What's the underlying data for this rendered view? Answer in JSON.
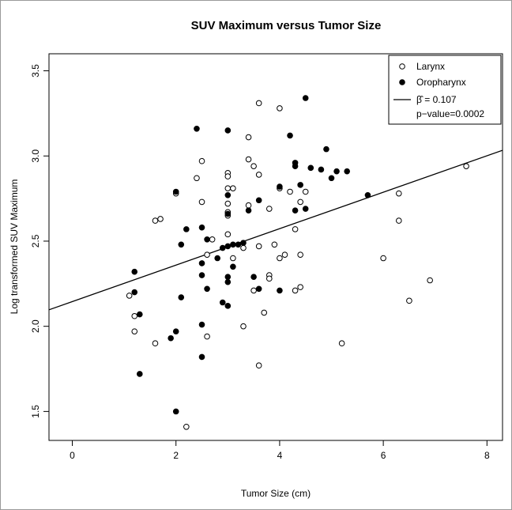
{
  "chart_data": {
    "type": "scatter",
    "title": "SUV Maximum versus Tumor Size",
    "xlabel": "Tumor Size (cm)",
    "ylabel": "Log transformed SUV Maximum",
    "xlim": [
      -0.45,
      8.3
    ],
    "ylim": [
      1.33,
      3.6
    ],
    "x_ticks": [
      0,
      2,
      4,
      6,
      8
    ],
    "y_ticks": [
      1.5,
      2.0,
      2.5,
      3.0,
      3.5
    ],
    "x_tick_labels": [
      "0",
      "2",
      "4",
      "6",
      "8"
    ],
    "y_tick_labels": [
      "1.5",
      "2.0",
      "2.5",
      "3.0",
      "3.5"
    ],
    "grid": false,
    "legend": {
      "position": "top-right",
      "entries": [
        "Larynx",
        "Oropharynx"
      ],
      "beta_label": "β̂ = 0.107",
      "pvalue_label": "p−value=0.0002"
    },
    "regression_line": {
      "slope": 0.107,
      "intercept": 2.145
    },
    "series": [
      {
        "name": "Larynx",
        "marker": "open-circle",
        "points": [
          [
            1.1,
            2.18
          ],
          [
            1.2,
            2.06
          ],
          [
            1.2,
            1.97
          ],
          [
            1.6,
            2.62
          ],
          [
            1.7,
            2.63
          ],
          [
            1.6,
            1.9
          ],
          [
            2.0,
            2.78
          ],
          [
            2.2,
            1.41
          ],
          [
            2.4,
            2.87
          ],
          [
            2.5,
            2.97
          ],
          [
            2.5,
            2.73
          ],
          [
            2.6,
            2.42
          ],
          [
            2.7,
            2.51
          ],
          [
            2.6,
            1.94
          ],
          [
            3.0,
            2.9
          ],
          [
            3.0,
            2.88
          ],
          [
            3.0,
            2.81
          ],
          [
            3.0,
            2.72
          ],
          [
            3.0,
            2.67
          ],
          [
            3.0,
            2.65
          ],
          [
            3.0,
            2.54
          ],
          [
            3.1,
            2.81
          ],
          [
            3.1,
            2.4
          ],
          [
            3.3,
            2.46
          ],
          [
            3.3,
            2.0
          ],
          [
            3.4,
            3.11
          ],
          [
            3.4,
            2.98
          ],
          [
            3.4,
            2.71
          ],
          [
            3.5,
            2.94
          ],
          [
            3.5,
            2.21
          ],
          [
            3.6,
            3.31
          ],
          [
            3.6,
            2.89
          ],
          [
            3.6,
            2.47
          ],
          [
            3.6,
            1.77
          ],
          [
            3.7,
            2.08
          ],
          [
            3.8,
            2.69
          ],
          [
            3.8,
            2.3
          ],
          [
            3.8,
            2.28
          ],
          [
            3.9,
            2.48
          ],
          [
            4.0,
            3.28
          ],
          [
            4.0,
            2.81
          ],
          [
            4.0,
            2.4
          ],
          [
            4.1,
            2.42
          ],
          [
            4.2,
            2.79
          ],
          [
            4.3,
            2.57
          ],
          [
            4.3,
            2.21
          ],
          [
            4.4,
            2.73
          ],
          [
            4.4,
            2.42
          ],
          [
            4.4,
            2.23
          ],
          [
            4.5,
            2.79
          ],
          [
            5.2,
            1.9
          ],
          [
            6.0,
            2.4
          ],
          [
            6.3,
            2.78
          ],
          [
            6.3,
            2.62
          ],
          [
            6.5,
            2.15
          ],
          [
            6.9,
            2.27
          ],
          [
            7.6,
            2.94
          ]
        ]
      },
      {
        "name": "Oropharynx",
        "marker": "filled-circle",
        "points": [
          [
            1.2,
            2.32
          ],
          [
            1.2,
            2.2
          ],
          [
            1.3,
            2.07
          ],
          [
            1.3,
            1.72
          ],
          [
            1.9,
            1.93
          ],
          [
            2.0,
            2.79
          ],
          [
            2.0,
            1.97
          ],
          [
            2.0,
            1.5
          ],
          [
            2.1,
            2.48
          ],
          [
            2.1,
            2.17
          ],
          [
            2.2,
            2.57
          ],
          [
            2.4,
            3.16
          ],
          [
            2.5,
            2.58
          ],
          [
            2.5,
            2.37
          ],
          [
            2.5,
            2.3
          ],
          [
            2.5,
            2.01
          ],
          [
            2.5,
            1.82
          ],
          [
            2.6,
            2.51
          ],
          [
            2.6,
            2.22
          ],
          [
            2.8,
            2.4
          ],
          [
            2.9,
            2.46
          ],
          [
            2.9,
            2.14
          ],
          [
            3.0,
            3.15
          ],
          [
            3.0,
            2.77
          ],
          [
            3.0,
            2.66
          ],
          [
            3.0,
            2.47
          ],
          [
            3.0,
            2.29
          ],
          [
            3.0,
            2.26
          ],
          [
            3.0,
            2.12
          ],
          [
            3.1,
            2.48
          ],
          [
            3.1,
            2.35
          ],
          [
            3.2,
            2.48
          ],
          [
            3.3,
            2.49
          ],
          [
            3.4,
            2.68
          ],
          [
            3.5,
            2.29
          ],
          [
            3.6,
            2.74
          ],
          [
            3.6,
            2.22
          ],
          [
            4.0,
            2.82
          ],
          [
            4.0,
            2.21
          ],
          [
            4.2,
            3.12
          ],
          [
            4.3,
            2.96
          ],
          [
            4.3,
            2.94
          ],
          [
            4.3,
            2.68
          ],
          [
            4.4,
            2.83
          ],
          [
            4.5,
            3.34
          ],
          [
            4.5,
            2.69
          ],
          [
            4.6,
            2.93
          ],
          [
            4.8,
            2.92
          ],
          [
            4.9,
            3.04
          ],
          [
            5.0,
            2.87
          ],
          [
            5.1,
            2.91
          ],
          [
            5.3,
            2.91
          ],
          [
            5.7,
            2.77
          ]
        ]
      }
    ]
  }
}
